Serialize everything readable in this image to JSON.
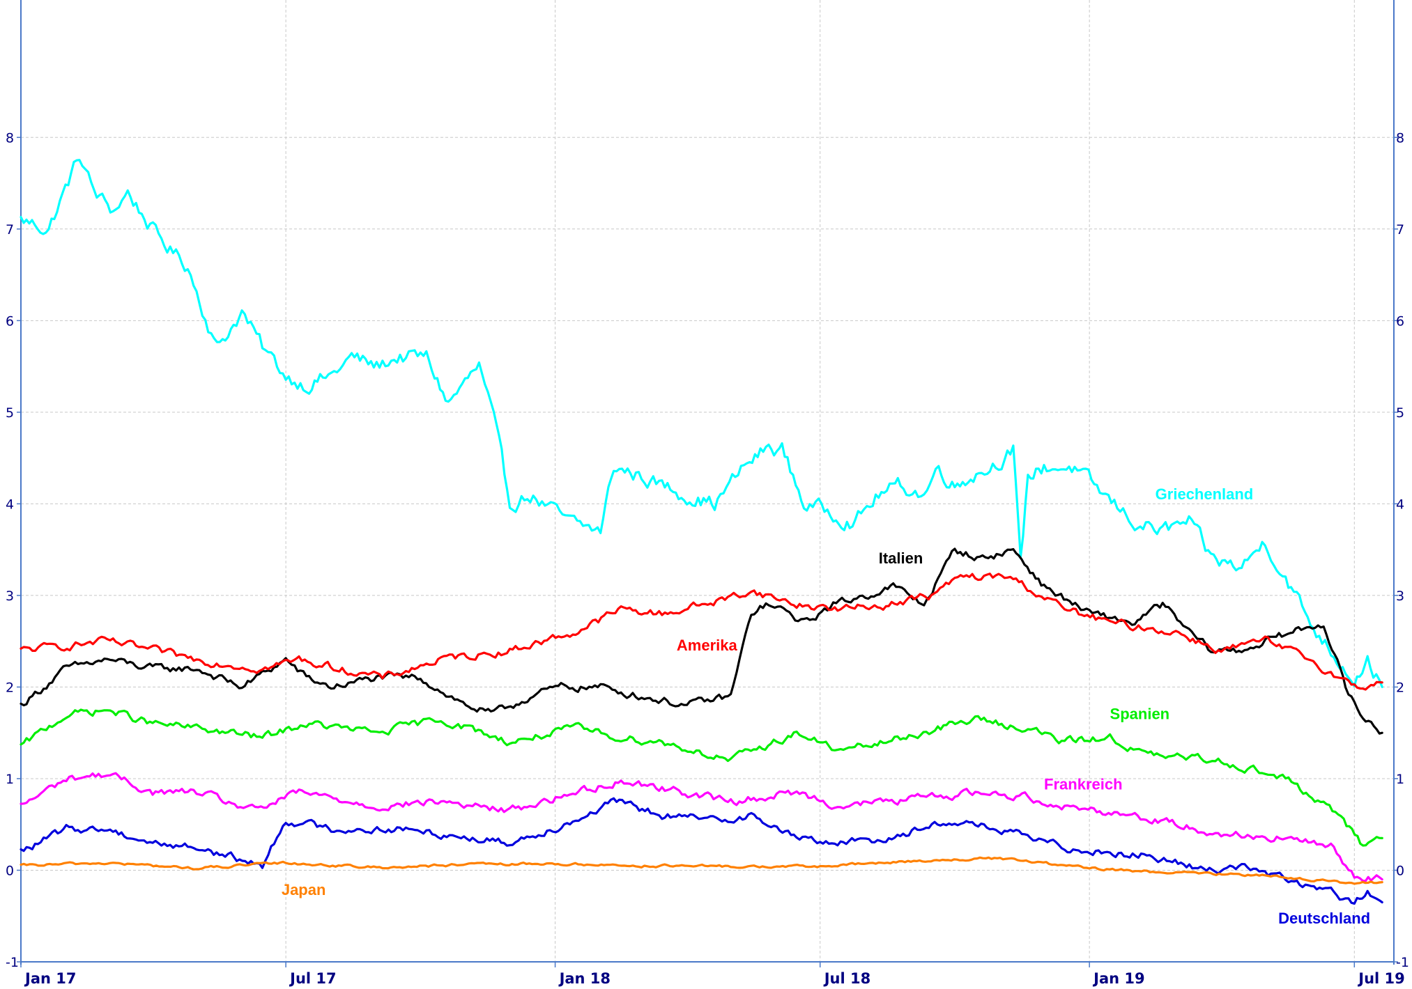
{
  "chart_data": {
    "type": "line",
    "title": "",
    "xlabel": "",
    "ylabel": "",
    "grid": true,
    "ylim": [
      -1,
      9.5
    ],
    "yticks": [
      -1,
      0,
      1,
      2,
      3,
      4,
      5,
      6,
      7,
      8
    ],
    "ytick_labels": [
      "-1",
      "0",
      "1",
      "2",
      "3",
      "4",
      "5",
      "6",
      "7",
      "8"
    ],
    "xlim": [
      "2017-01-01",
      "2019-07-28"
    ],
    "xticks": [
      "2017-01-01",
      "2017-07-01",
      "2018-01-01",
      "2018-07-01",
      "2019-01-01",
      "2019-07-01"
    ],
    "xtick_labels": [
      "Jan 17",
      "Jul 17",
      "Jan 18",
      "Jul 18",
      "Jan 19",
      "Jul 19"
    ],
    "series": [
      {
        "name": "Griechenland",
        "color": "#00ffff",
        "x": [
          "2017-01-01",
          "2017-01-20",
          "2017-02-10",
          "2017-02-20",
          "2017-03-05",
          "2017-03-15",
          "2017-04-05",
          "2017-04-25",
          "2017-05-15",
          "2017-06-01",
          "2017-06-15",
          "2017-07-01",
          "2017-07-15",
          "2017-08-01",
          "2017-08-15",
          "2017-09-01",
          "2017-09-15",
          "2017-10-05",
          "2017-10-20",
          "2017-11-10",
          "2017-11-20",
          "2017-12-01",
          "2017-12-15",
          "2018-01-10",
          "2018-02-01",
          "2018-02-10",
          "2018-03-01",
          "2018-03-15",
          "2018-04-01",
          "2018-04-20",
          "2018-05-10",
          "2018-05-25",
          "2018-06-05",
          "2018-06-20",
          "2018-07-10",
          "2018-07-25",
          "2018-08-10",
          "2018-08-25",
          "2018-09-10",
          "2018-09-20",
          "2018-10-01",
          "2018-10-10",
          "2018-10-25",
          "2018-11-10",
          "2018-11-15",
          "2018-11-20",
          "2018-12-01",
          "2018-12-20",
          "2019-01-10",
          "2019-02-01",
          "2019-02-20",
          "2019-03-10",
          "2019-03-25",
          "2019-04-15",
          "2019-05-01",
          "2019-05-15",
          "2019-06-01",
          "2019-06-15",
          "2019-07-01",
          "2019-07-10",
          "2019-07-20"
        ],
        "values": [
          7.1,
          7.0,
          7.8,
          7.4,
          7.2,
          7.4,
          6.9,
          6.6,
          5.7,
          6.1,
          5.7,
          5.4,
          5.3,
          5.4,
          5.6,
          5.5,
          5.6,
          5.6,
          5.1,
          5.5,
          4.9,
          4.0,
          4.1,
          3.8,
          3.7,
          4.4,
          4.3,
          4.2,
          4.1,
          4.0,
          4.4,
          4.6,
          4.6,
          4.0,
          3.9,
          3.8,
          4.1,
          4.2,
          4.1,
          4.4,
          4.2,
          4.3,
          4.4,
          4.6,
          3.3,
          4.3,
          4.4,
          4.4,
          4.1,
          3.8,
          3.7,
          3.8,
          3.4,
          3.3,
          3.6,
          3.2,
          2.7,
          2.4,
          2.1,
          2.3,
          2.0
        ]
      },
      {
        "name": "Italien",
        "color": "#000000",
        "x": [
          "2017-01-01",
          "2017-02-01",
          "2017-03-01",
          "2017-04-01",
          "2017-05-01",
          "2017-06-01",
          "2017-07-01",
          "2017-07-15",
          "2017-08-01",
          "2017-09-01",
          "2017-10-01",
          "2017-11-01",
          "2017-11-20",
          "2017-12-15",
          "2018-01-05",
          "2018-02-01",
          "2018-03-01",
          "2018-04-01",
          "2018-05-01",
          "2018-05-15",
          "2018-05-25",
          "2018-06-10",
          "2018-06-20",
          "2018-07-10",
          "2018-08-01",
          "2018-08-20",
          "2018-09-10",
          "2018-10-01",
          "2018-10-20",
          "2018-11-10",
          "2018-12-01",
          "2019-01-01",
          "2019-02-01",
          "2019-02-20",
          "2019-03-10",
          "2019-03-25",
          "2019-04-15",
          "2019-05-01",
          "2019-05-20",
          "2019-06-10",
          "2019-06-25",
          "2019-07-05",
          "2019-07-20"
        ],
        "values": [
          1.8,
          2.2,
          2.3,
          2.2,
          2.2,
          2.0,
          2.3,
          2.1,
          2.0,
          2.1,
          2.1,
          1.8,
          1.7,
          1.9,
          2.0,
          2.0,
          1.9,
          1.8,
          1.9,
          2.8,
          2.9,
          2.8,
          2.7,
          2.9,
          3.0,
          3.1,
          2.9,
          3.5,
          3.4,
          3.5,
          3.1,
          2.8,
          2.7,
          2.9,
          2.6,
          2.4,
          2.4,
          2.5,
          2.6,
          2.7,
          2.0,
          1.7,
          1.5
        ]
      },
      {
        "name": "Amerika",
        "color": "#ff0000",
        "x": [
          "2017-01-01",
          "2017-03-01",
          "2017-05-01",
          "2017-06-15",
          "2017-07-10",
          "2017-09-05",
          "2017-10-15",
          "2017-12-01",
          "2018-01-15",
          "2018-02-15",
          "2018-03-15",
          "2018-04-25",
          "2018-05-15",
          "2018-06-15",
          "2018-07-15",
          "2018-08-15",
          "2018-09-15",
          "2018-10-05",
          "2018-11-08",
          "2018-12-15",
          "2019-01-15",
          "2019-03-01",
          "2019-04-01",
          "2019-05-01",
          "2019-06-01",
          "2019-07-01",
          "2019-07-20"
        ],
        "values": [
          2.4,
          2.5,
          2.3,
          2.2,
          2.3,
          2.1,
          2.3,
          2.4,
          2.6,
          2.85,
          2.8,
          2.95,
          3.05,
          2.9,
          2.85,
          2.9,
          3.0,
          3.2,
          3.2,
          2.85,
          2.7,
          2.6,
          2.4,
          2.5,
          2.3,
          2.0,
          2.05
        ]
      },
      {
        "name": "Spanien",
        "color": "#00ee00",
        "x": [
          "2017-01-01",
          "2017-02-01",
          "2017-03-01",
          "2017-04-01",
          "2017-05-01",
          "2017-06-15",
          "2017-07-15",
          "2017-09-01",
          "2017-10-15",
          "2017-12-01",
          "2018-01-15",
          "2018-02-15",
          "2018-03-15",
          "2018-05-01",
          "2018-06-15",
          "2018-07-15",
          "2018-08-15",
          "2018-10-15",
          "2018-11-20",
          "2018-12-15",
          "2019-01-15",
          "2019-02-10",
          "2019-04-01",
          "2019-05-15",
          "2019-06-20",
          "2019-07-05",
          "2019-07-20"
        ],
        "values": [
          1.35,
          1.7,
          1.75,
          1.6,
          1.55,
          1.45,
          1.6,
          1.5,
          1.65,
          1.4,
          1.55,
          1.45,
          1.4,
          1.2,
          1.5,
          1.3,
          1.4,
          1.65,
          1.55,
          1.4,
          1.45,
          1.25,
          1.2,
          1.0,
          0.6,
          0.3,
          0.35
        ]
      },
      {
        "name": "Frankreich",
        "color": "#ff00ff",
        "x": [
          "2017-01-01",
          "2017-02-01",
          "2017-03-01",
          "2017-04-01",
          "2017-05-01",
          "2017-06-10",
          "2017-07-10",
          "2017-09-01",
          "2017-10-15",
          "2017-12-01",
          "2018-01-15",
          "2018-02-15",
          "2018-03-15",
          "2018-05-01",
          "2018-06-15",
          "2018-07-15",
          "2018-08-15",
          "2018-10-15",
          "2018-11-20",
          "2018-12-15",
          "2019-02-01",
          "2019-04-01",
          "2019-05-15",
          "2019-06-15",
          "2019-07-01",
          "2019-07-20"
        ],
        "values": [
          0.7,
          1.0,
          1.05,
          0.85,
          0.85,
          0.65,
          0.85,
          0.7,
          0.75,
          0.65,
          0.85,
          0.98,
          0.9,
          0.75,
          0.85,
          0.7,
          0.75,
          0.85,
          0.8,
          0.7,
          0.6,
          0.4,
          0.35,
          0.25,
          -0.05,
          -0.1
        ]
      },
      {
        "name": "Deutschland",
        "color": "#0000dd",
        "x": [
          "2017-01-01",
          "2017-02-01",
          "2017-03-01",
          "2017-04-01",
          "2017-05-01",
          "2017-06-15",
          "2017-07-01",
          "2017-08-01",
          "2017-09-15",
          "2017-10-15",
          "2017-12-01",
          "2018-01-15",
          "2018-02-10",
          "2018-03-15",
          "2018-04-15",
          "2018-05-15",
          "2018-06-15",
          "2018-07-15",
          "2018-08-15",
          "2018-10-01",
          "2018-11-10",
          "2018-12-15",
          "2019-01-15",
          "2019-02-15",
          "2019-03-20",
          "2019-04-15",
          "2019-05-15",
          "2019-06-15",
          "2019-07-01",
          "2019-07-10",
          "2019-07-20"
        ],
        "values": [
          0.2,
          0.45,
          0.45,
          0.3,
          0.25,
          0.05,
          0.55,
          0.45,
          0.45,
          0.4,
          0.3,
          0.55,
          0.75,
          0.6,
          0.55,
          0.6,
          0.35,
          0.3,
          0.35,
          0.55,
          0.4,
          0.25,
          0.2,
          0.15,
          0.0,
          0.05,
          -0.1,
          -0.25,
          -0.35,
          -0.25,
          -0.35
        ]
      },
      {
        "name": "Japan",
        "color": "#ff8000",
        "x": [
          "2017-01-01",
          "2017-03-01",
          "2017-05-01",
          "2017-07-01",
          "2017-09-01",
          "2017-11-01",
          "2018-01-01",
          "2018-03-01",
          "2018-05-01",
          "2018-07-01",
          "2018-09-01",
          "2018-11-01",
          "2019-01-01",
          "2019-03-01",
          "2019-05-01",
          "2019-07-01",
          "2019-07-20"
        ],
        "values": [
          0.05,
          0.08,
          0.02,
          0.08,
          0.03,
          0.06,
          0.07,
          0.05,
          0.04,
          0.04,
          0.1,
          0.13,
          0.02,
          -0.03,
          -0.05,
          -0.15,
          -0.13
        ]
      }
    ],
    "annotations": [
      {
        "text": "Griechenland",
        "color": "#00ffff",
        "x": "2019-02-15",
        "y": 4.05
      },
      {
        "text": "Italien",
        "color": "#000000",
        "x": "2018-08-10",
        "y": 3.35
      },
      {
        "text": "Amerika",
        "color": "#ff0000",
        "x": "2018-03-25",
        "y": 2.4
      },
      {
        "text": "Spanien",
        "color": "#00ee00",
        "x": "2019-01-15",
        "y": 1.65
      },
      {
        "text": "Frankreich",
        "color": "#ff00ff",
        "x": "2018-12-01",
        "y": 0.88
      },
      {
        "text": "Japan",
        "color": "#ff8000",
        "x": "2017-06-28",
        "y": -0.27
      },
      {
        "text": "Deutschland",
        "color": "#0000dd",
        "x": "2019-05-10",
        "y": -0.58
      }
    ]
  }
}
